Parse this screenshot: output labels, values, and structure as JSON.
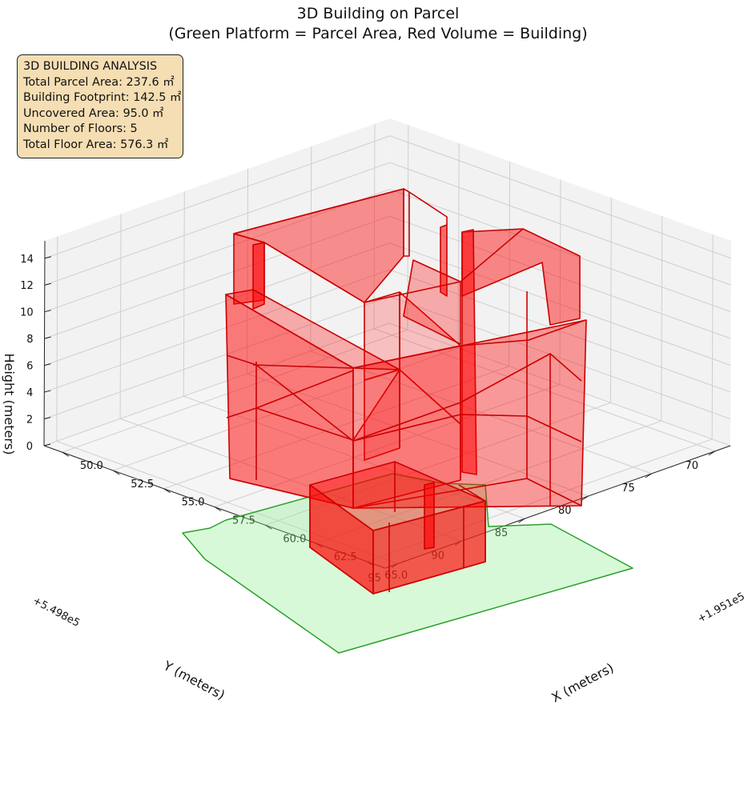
{
  "chart_data": {
    "type": "3d-polygons",
    "title_line1": "3D Building on Parcel",
    "title_line2": "(Green Platform = Parcel Area, Red Volume = Building)",
    "xlabel": "X (meters)",
    "ylabel": "Y (meters)",
    "zlabel": "Height (meters)",
    "x_offset_label": "+1.951e5",
    "y_offset_label": "+5.498e5",
    "x_ticks": [
      "50.0",
      "52.5",
      "55.0",
      "57.5",
      "60.0",
      "62.5",
      "65.0"
    ],
    "y_ticks": [
      "70",
      "75",
      "80",
      "85",
      "90",
      "95"
    ],
    "z_ticks": [
      "0",
      "2",
      "4",
      "6",
      "8",
      "10",
      "12",
      "14"
    ],
    "grid": true,
    "colors": {
      "parcel_fill": "#90ee90",
      "parcel_edge": "#2ca02c",
      "building_fill": "#ff0000",
      "building_edge": "#cc0000",
      "pane": "#f2f2f2",
      "grid": "#cfcfcf"
    },
    "analysis_box": {
      "heading": "3D BUILDING ANALYSIS",
      "lines": [
        "Total Parcel Area: 237.6 ㎡",
        "Building Footprint: 142.5 ㎡",
        "Uncovered Area: 95.0 ㎡",
        "Number of Floors: 5",
        "Total Floor Area: 576.3 ㎡"
      ],
      "location": "upper-left"
    }
  }
}
